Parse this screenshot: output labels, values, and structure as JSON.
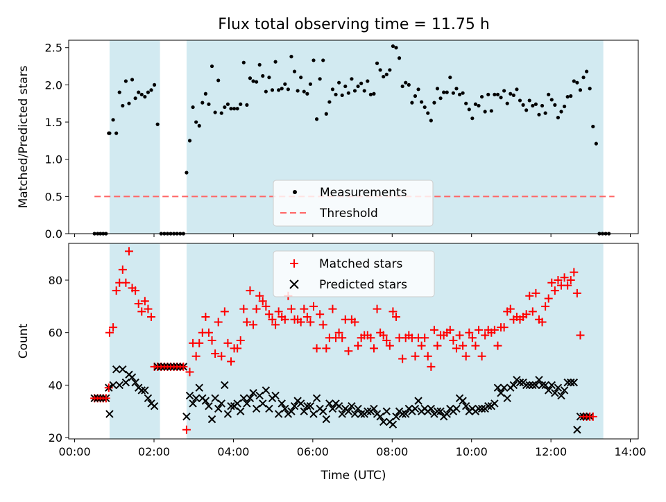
{
  "title": "Flux total observing time = 11.75 h",
  "colors": {
    "band": "#add8e6",
    "measure": "#000000",
    "threshold": "#ff6666",
    "matched": "#ff0000",
    "predicted": "#000000"
  },
  "chart_data": [
    {
      "type": "scatter",
      "ylabel": "Matched/Predicted stars",
      "ylim": [
        0,
        2.6
      ],
      "yticks": [
        0.0,
        0.5,
        1.0,
        1.5,
        2.0,
        2.5
      ],
      "xlim_hours": [
        -0.15,
        14.2
      ],
      "bands_hours": [
        [
          0.88,
          2.15
        ],
        [
          2.82,
          13.32
        ]
      ],
      "threshold_value": 0.5,
      "threshold_range_hours": [
        0.5,
        13.6
      ],
      "legend": {
        "placement": "lower center",
        "measurements": "Measurements",
        "threshold": "Threshold"
      },
      "measurements_x_hours": [
        0.5,
        0.58,
        0.65,
        0.72,
        0.79,
        0.86,
        0.88,
        0.97,
        1.05,
        1.13,
        1.21,
        1.29,
        1.37,
        1.45,
        1.53,
        1.61,
        1.69,
        1.77,
        1.85,
        1.93,
        2.01,
        2.09,
        2.18,
        2.26,
        2.34,
        2.42,
        2.5,
        2.58,
        2.66,
        2.74,
        2.82,
        2.9,
        2.98,
        3.06,
        3.14,
        3.22,
        3.3,
        3.38,
        3.46,
        3.54,
        3.62,
        3.7,
        3.78,
        3.86,
        3.94,
        4.02,
        4.1,
        4.18,
        4.26,
        4.34,
        4.42,
        4.5,
        4.58,
        4.66,
        4.74,
        4.82,
        4.9,
        4.98,
        5.06,
        5.14,
        5.22,
        5.3,
        5.38,
        5.46,
        5.54,
        5.62,
        5.7,
        5.78,
        5.86,
        5.94,
        6.02,
        6.1,
        6.18,
        6.26,
        6.34,
        6.42,
        6.5,
        6.58,
        6.66,
        6.74,
        6.82,
        6.9,
        6.98,
        7.06,
        7.14,
        7.22,
        7.3,
        7.38,
        7.46,
        7.54,
        7.62,
        7.7,
        7.78,
        7.86,
        7.94,
        8.02,
        8.1,
        8.18,
        8.26,
        8.34,
        8.42,
        8.5,
        8.58,
        8.66,
        8.74,
        8.82,
        8.9,
        8.98,
        9.06,
        9.14,
        9.22,
        9.3,
        9.38,
        9.46,
        9.54,
        9.62,
        9.7,
        9.78,
        9.86,
        9.94,
        10.02,
        10.1,
        10.18,
        10.26,
        10.34,
        10.42,
        10.5,
        10.58,
        10.66,
        10.74,
        10.82,
        10.9,
        10.98,
        11.06,
        11.14,
        11.22,
        11.3,
        11.38,
        11.46,
        11.54,
        11.62,
        11.7,
        11.78,
        11.86,
        11.94,
        12.02,
        12.1,
        12.18,
        12.26,
        12.34,
        12.42,
        12.5,
        12.58,
        12.66,
        12.74,
        12.82,
        12.9,
        12.98,
        13.06,
        13.14,
        13.22,
        13.3,
        13.38,
        13.46,
        13.54,
        13.62
      ],
      "measurements_y": [
        0,
        0,
        0,
        0,
        0,
        1.35,
        1.35,
        1.53,
        1.35,
        1.9,
        1.72,
        2.05,
        1.75,
        2.07,
        1.82,
        1.9,
        1.87,
        1.84,
        1.9,
        1.93,
        2.0,
        1.47,
        0,
        0,
        0,
        0,
        0,
        0,
        0,
        0,
        0.82,
        1.25,
        1.7,
        1.5,
        1.45,
        1.76,
        1.88,
        1.74,
        2.25,
        1.63,
        2.06,
        1.62,
        1.7,
        1.74,
        1.68,
        1.68,
        1.68,
        1.74,
        2.3,
        1.73,
        2.09,
        2.05,
        2.04,
        2.27,
        2.12,
        1.91,
        2.1,
        1.93,
        2.31,
        1.93,
        1.95,
        2.01,
        1.94,
        2.38,
        2.18,
        1.92,
        2.1,
        1.91,
        1.88,
        2.01,
        2.33,
        1.54,
        2.08,
        2.33,
        1.61,
        1.77,
        1.94,
        1.87,
        2.03,
        1.86,
        1.98,
        1.89,
        2.08,
        1.92,
        1.98,
        2.02,
        1.92,
        2.05,
        1.87,
        1.88,
        2.29,
        2.2,
        2.11,
        2.14,
        2.2,
        2.52,
        2.5,
        2.36,
        1.98,
        2.03,
        2.0,
        1.76,
        1.85,
        1.94,
        1.77,
        1.7,
        1.62,
        1.52,
        1.76,
        1.95,
        1.82,
        1.9,
        1.9,
        2.1,
        1.89,
        1.95,
        1.87,
        1.89,
        1.75,
        1.67,
        1.55,
        1.74,
        1.72,
        1.84,
        1.64,
        1.87,
        1.65,
        1.87,
        1.87,
        1.83,
        1.92,
        1.75,
        1.88,
        1.86,
        1.94,
        1.79,
        1.73,
        1.66,
        1.79,
        1.72,
        1.74,
        1.6,
        1.72,
        1.62,
        1.87,
        1.8,
        1.73,
        1.56,
        1.64,
        1.71,
        1.84,
        1.85,
        2.05,
        2.03,
        1.93,
        2.1,
        2.18,
        1.95,
        1.44,
        1.21,
        0,
        0,
        0,
        0
      ],
      "xlabel": "",
      "x_ticks_shown": false
    },
    {
      "type": "scatter",
      "xlabel": "Time (UTC)",
      "ylabel": "Count",
      "ylim": [
        19.5,
        94
      ],
      "yticks": [
        20,
        40,
        60,
        80
      ],
      "xlim_hours": [
        -0.15,
        14.2
      ],
      "xticks": [
        "00:00",
        "02:00",
        "04:00",
        "06:00",
        "08:00",
        "10:00",
        "12:00",
        "14:00"
      ],
      "xticks_hours": [
        0,
        2,
        4,
        6,
        8,
        10,
        12,
        14
      ],
      "bands_hours": [
        [
          0.88,
          2.15
        ],
        [
          2.82,
          13.32
        ]
      ],
      "legend": {
        "placement": "upper center",
        "matched": "Matched stars",
        "predicted": "Predicted stars"
      },
      "x_hours": [
        0.5,
        0.58,
        0.65,
        0.72,
        0.79,
        0.86,
        0.88,
        0.97,
        1.05,
        1.13,
        1.21,
        1.29,
        1.37,
        1.45,
        1.53,
        1.61,
        1.69,
        1.77,
        1.85,
        1.93,
        2.01,
        2.09,
        2.18,
        2.26,
        2.34,
        2.42,
        2.5,
        2.58,
        2.66,
        2.74,
        2.82,
        2.9,
        2.98,
        3.06,
        3.14,
        3.22,
        3.3,
        3.38,
        3.46,
        3.54,
        3.62,
        3.7,
        3.78,
        3.86,
        3.94,
        4.02,
        4.1,
        4.18,
        4.26,
        4.34,
        4.42,
        4.5,
        4.58,
        4.66,
        4.74,
        4.82,
        4.9,
        4.98,
        5.06,
        5.14,
        5.22,
        5.3,
        5.38,
        5.46,
        5.54,
        5.62,
        5.7,
        5.78,
        5.86,
        5.94,
        6.02,
        6.1,
        6.18,
        6.26,
        6.34,
        6.42,
        6.5,
        6.58,
        6.66,
        6.74,
        6.82,
        6.9,
        6.98,
        7.06,
        7.14,
        7.22,
        7.3,
        7.38,
        7.46,
        7.54,
        7.62,
        7.7,
        7.78,
        7.86,
        7.94,
        8.02,
        8.1,
        8.18,
        8.26,
        8.34,
        8.42,
        8.5,
        8.58,
        8.66,
        8.74,
        8.82,
        8.9,
        8.98,
        9.06,
        9.14,
        9.22,
        9.3,
        9.38,
        9.46,
        9.54,
        9.62,
        9.7,
        9.78,
        9.86,
        9.94,
        10.02,
        10.1,
        10.18,
        10.26,
        10.34,
        10.42,
        10.5,
        10.58,
        10.66,
        10.74,
        10.82,
        10.9,
        10.98,
        11.06,
        11.14,
        11.22,
        11.3,
        11.38,
        11.46,
        11.54,
        11.62,
        11.7,
        11.78,
        11.86,
        11.94,
        12.02,
        12.1,
        12.18,
        12.26,
        12.34,
        12.42,
        12.5,
        12.58,
        12.66,
        12.74,
        12.82,
        12.9,
        12.98,
        13.06,
        13.14,
        13.22,
        13.3,
        13.38,
        13.46,
        13.54,
        13.62
      ],
      "matched": [
        35,
        35,
        35,
        35,
        35,
        39,
        60,
        62,
        76,
        79,
        84,
        79,
        91,
        77,
        76,
        71,
        68,
        72,
        69,
        66,
        47,
        47,
        47,
        47,
        47,
        47,
        47,
        47,
        47,
        47,
        23,
        45,
        56,
        51,
        56,
        60,
        66,
        60,
        57,
        52,
        64,
        51,
        68,
        56,
        49,
        54,
        54,
        57,
        69,
        64,
        76,
        63,
        69,
        74,
        72,
        70,
        67,
        65,
        63,
        68,
        66,
        65,
        74,
        69,
        65,
        65,
        64,
        69,
        66,
        64,
        70,
        54,
        67,
        63,
        54,
        58,
        69,
        58,
        60,
        58,
        65,
        53,
        65,
        64,
        55,
        58,
        59,
        59,
        58,
        54,
        69,
        60,
        59,
        57,
        55,
        68,
        66,
        58,
        50,
        58,
        59,
        58,
        51,
        58,
        55,
        58,
        51,
        47,
        61,
        55,
        59,
        59,
        60,
        61,
        57,
        54,
        59,
        55,
        51,
        60,
        58,
        55,
        61,
        51,
        59,
        61,
        60,
        61,
        55,
        62,
        62,
        68,
        69,
        65,
        66,
        65,
        66,
        67,
        74,
        68,
        75,
        65,
        64,
        70,
        73,
        79,
        76,
        80,
        78,
        81,
        78,
        80,
        83,
        75,
        59,
        28,
        28,
        28,
        28
      ],
      "predicted": [
        35,
        35,
        35,
        35,
        35,
        39,
        29,
        40,
        46,
        40,
        46,
        41,
        44,
        43,
        41,
        39,
        38,
        38,
        35,
        33,
        32,
        47,
        47,
        47,
        47,
        47,
        47,
        47,
        47,
        47,
        28,
        36,
        33,
        35,
        39,
        35,
        34,
        32,
        27,
        35,
        31,
        33,
        40,
        29,
        32,
        32,
        33,
        30,
        35,
        33,
        35,
        37,
        31,
        36,
        33,
        38,
        31,
        35,
        36,
        29,
        33,
        31,
        29,
        30,
        32,
        34,
        33,
        30,
        32,
        32,
        29,
        35,
        31,
        30,
        27,
        33,
        31,
        33,
        32,
        29,
        31,
        30,
        32,
        29,
        31,
        29,
        29,
        30,
        30,
        31,
        29,
        28,
        26,
        30,
        26,
        25,
        28,
        30,
        29,
        29,
        31,
        30,
        31,
        34,
        30,
        31,
        30,
        31,
        29,
        30,
        30,
        28,
        29,
        31,
        30,
        31,
        35,
        34,
        32,
        30,
        31,
        30,
        31,
        31,
        31,
        32,
        32,
        33,
        39,
        37,
        39,
        35,
        39,
        40,
        42,
        41,
        41,
        40,
        40,
        40,
        40,
        42,
        40,
        40,
        38,
        40,
        37,
        39,
        36,
        38,
        41,
        41,
        41,
        23,
        28,
        28,
        28,
        28
      ]
    }
  ]
}
